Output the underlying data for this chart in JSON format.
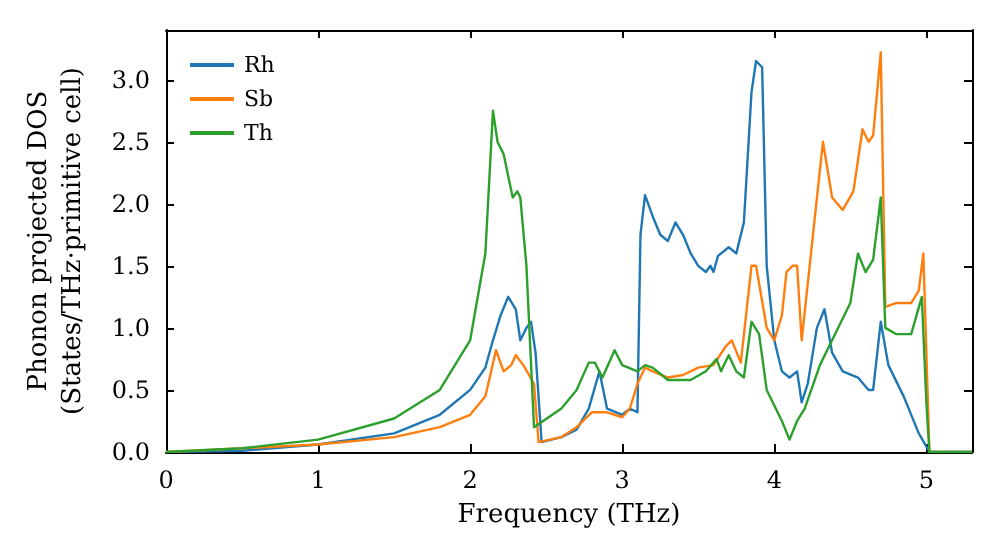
{
  "chart_data": {
    "type": "line",
    "xlabel": "Frequency (THz)",
    "ylabel": "Phonon projected DOS\n(States/THz·primitive cell)",
    "xlim": [
      0,
      5.3
    ],
    "xticks": [
      0,
      1,
      2,
      3,
      4,
      5
    ],
    "ylim": [
      0,
      3.4
    ],
    "yticks": [
      {
        "value": 0,
        "label": "0.0"
      },
      {
        "value": 0.5,
        "label": "0.5"
      },
      {
        "value": 1,
        "label": "1.0"
      },
      {
        "value": 1.5,
        "label": "1.5"
      },
      {
        "value": 2,
        "label": "2.0"
      },
      {
        "value": 2.5,
        "label": "2.5"
      },
      {
        "value": 3,
        "label": "3.0"
      }
    ],
    "grid": false,
    "legend": "top left",
    "marker": "none",
    "line_style": "solid",
    "series": [
      {
        "name": "Rh",
        "color": "#1f77b4",
        "x": [
          0,
          0.5,
          1.0,
          1.5,
          1.8,
          2.0,
          2.1,
          2.15,
          2.2,
          2.25,
          2.3,
          2.33,
          2.37,
          2.4,
          2.43,
          2.47,
          2.6,
          2.7,
          2.78,
          2.85,
          2.9,
          3.0,
          3.05,
          3.1,
          3.12,
          3.15,
          3.2,
          3.25,
          3.3,
          3.35,
          3.4,
          3.45,
          3.5,
          3.55,
          3.58,
          3.6,
          3.63,
          3.7,
          3.75,
          3.8,
          3.85,
          3.88,
          3.92,
          3.95,
          4.0,
          4.05,
          4.1,
          4.15,
          4.18,
          4.22,
          4.28,
          4.33,
          4.38,
          4.45,
          4.55,
          4.62,
          4.65,
          4.7,
          4.75,
          4.85,
          4.95,
          5.02,
          5.3
        ],
        "values": [
          0,
          0.01,
          0.06,
          0.15,
          0.3,
          0.5,
          0.68,
          0.9,
          1.1,
          1.25,
          1.15,
          0.9,
          1.0,
          1.05,
          0.8,
          0.08,
          0.12,
          0.18,
          0.35,
          0.65,
          0.35,
          0.3,
          0.35,
          0.32,
          1.75,
          2.07,
          1.9,
          1.75,
          1.7,
          1.85,
          1.75,
          1.6,
          1.5,
          1.45,
          1.5,
          1.45,
          1.58,
          1.65,
          1.6,
          1.85,
          2.9,
          3.15,
          3.1,
          1.5,
          0.9,
          0.65,
          0.6,
          0.65,
          0.4,
          0.55,
          1.0,
          1.15,
          0.8,
          0.65,
          0.6,
          0.5,
          0.5,
          1.05,
          0.7,
          0.45,
          0.15,
          0,
          0
        ]
      },
      {
        "name": "Sb",
        "color": "#ff7f0e",
        "x": [
          0,
          1.0,
          1.5,
          1.8,
          2.0,
          2.1,
          2.17,
          2.22,
          2.27,
          2.3,
          2.35,
          2.42,
          2.45,
          2.6,
          2.7,
          2.8,
          2.9,
          3.0,
          3.05,
          3.1,
          3.15,
          3.2,
          3.3,
          3.4,
          3.5,
          3.6,
          3.68,
          3.72,
          3.78,
          3.85,
          3.88,
          3.95,
          4.0,
          4.05,
          4.08,
          4.12,
          4.15,
          4.18,
          4.25,
          4.32,
          4.38,
          4.45,
          4.52,
          4.58,
          4.62,
          4.65,
          4.7,
          4.73,
          4.8,
          4.9,
          4.95,
          4.98,
          5.02,
          5.3
        ],
        "values": [
          0,
          0.06,
          0.12,
          0.2,
          0.3,
          0.45,
          0.82,
          0.65,
          0.7,
          0.78,
          0.7,
          0.55,
          0.08,
          0.12,
          0.2,
          0.32,
          0.32,
          0.28,
          0.35,
          0.55,
          0.68,
          0.65,
          0.6,
          0.62,
          0.68,
          0.7,
          0.85,
          0.9,
          0.72,
          1.5,
          1.5,
          1.0,
          0.9,
          1.1,
          1.45,
          1.5,
          1.5,
          0.9,
          1.7,
          2.5,
          2.05,
          1.95,
          2.1,
          2.6,
          2.5,
          2.55,
          3.22,
          1.17,
          1.2,
          1.2,
          1.3,
          1.6,
          0,
          0
        ]
      },
      {
        "name": "Th",
        "color": "#2ca02c",
        "x": [
          0,
          0.5,
          1.0,
          1.5,
          1.8,
          2.0,
          2.1,
          2.15,
          2.18,
          2.22,
          2.28,
          2.31,
          2.33,
          2.37,
          2.42,
          2.6,
          2.7,
          2.78,
          2.82,
          2.87,
          2.95,
          3.0,
          3.1,
          3.15,
          3.2,
          3.3,
          3.45,
          3.55,
          3.62,
          3.65,
          3.7,
          3.75,
          3.8,
          3.85,
          3.9,
          3.95,
          4.05,
          4.1,
          4.15,
          4.2,
          4.3,
          4.4,
          4.5,
          4.55,
          4.6,
          4.65,
          4.7,
          4.73,
          4.8,
          4.9,
          4.97,
          5.0,
          5.02,
          5.3
        ],
        "values": [
          0,
          0.03,
          0.1,
          0.27,
          0.5,
          0.9,
          1.6,
          2.75,
          2.5,
          2.4,
          2.05,
          2.1,
          2.05,
          1.5,
          0.2,
          0.35,
          0.5,
          0.72,
          0.72,
          0.6,
          0.82,
          0.7,
          0.65,
          0.7,
          0.68,
          0.58,
          0.58,
          0.65,
          0.75,
          0.65,
          0.78,
          0.65,
          0.6,
          1.05,
          0.95,
          0.5,
          0.25,
          0.1,
          0.25,
          0.35,
          0.7,
          0.95,
          1.2,
          1.6,
          1.45,
          1.55,
          2.05,
          1.0,
          0.95,
          0.95,
          1.25,
          0.4,
          0,
          0
        ]
      }
    ]
  }
}
